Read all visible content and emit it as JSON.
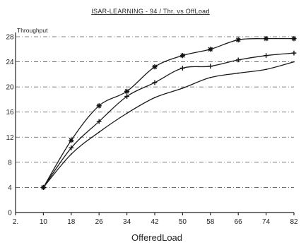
{
  "chart_data": {
    "type": "line",
    "title": "ISAR-LEARNING - 94 / Thr. vs OffLoad",
    "xlabel": "OfferedLoad",
    "ylabel": "Throughput",
    "x_ticks": [
      "2.",
      "10",
      "18",
      "26",
      "34",
      "42",
      "50",
      "58",
      "66",
      "74",
      "82"
    ],
    "y_ticks": [
      "0",
      "4",
      "8",
      "12",
      "16",
      "20",
      "24",
      "28"
    ],
    "xlim": [
      2,
      82
    ],
    "ylim": [
      0,
      28
    ],
    "grid": true,
    "x": [
      10,
      18,
      26,
      34,
      42,
      50,
      58,
      66,
      74,
      82
    ],
    "series": [
      {
        "marker": "asterisk",
        "values": [
          4.0,
          11.5,
          17.0,
          19.3,
          23.2,
          25.0,
          26.0,
          27.5,
          27.7,
          27.7
        ]
      },
      {
        "marker": "plus",
        "values": [
          4.0,
          10.3,
          14.5,
          18.5,
          20.7,
          23.0,
          23.3,
          24.3,
          25.0,
          25.4
        ]
      },
      {
        "marker": "none",
        "values": [
          4.0,
          9.3,
          12.8,
          15.8,
          18.3,
          19.8,
          21.5,
          22.2,
          22.8,
          24.0
        ]
      }
    ]
  }
}
